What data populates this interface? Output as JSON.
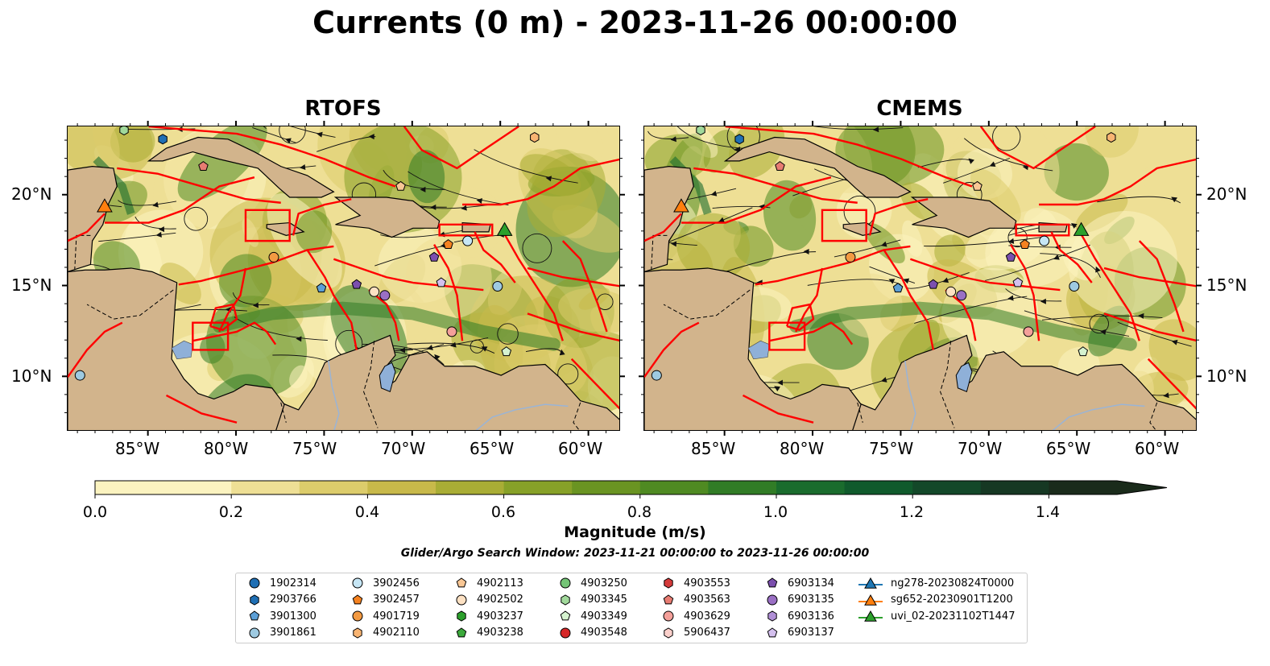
{
  "title": "Currents (0 m) - 2023-11-26 00:00:00",
  "panels": [
    {
      "title": "RTOFS"
    },
    {
      "title": "CMEMS"
    }
  ],
  "lon_ticks": [
    "85°W",
    "80°W",
    "75°W",
    "70°W",
    "65°W",
    "60°W"
  ],
  "lat_ticks": [
    "20°N",
    "15°N",
    "10°N"
  ],
  "colorbar": {
    "label": "Magnitude (m/s)",
    "ticks": [
      "0.0",
      "0.2",
      "0.4",
      "0.6",
      "0.8",
      "1.0",
      "1.2",
      "1.4"
    ],
    "extend": "max"
  },
  "search_window": "Glider/Argo Search Window: 2023-11-21 00:00:00 to 2023-11-26 00:00:00",
  "colors": {
    "land": "#d2b48c",
    "lake": "#8fb0d8",
    "boundaries": "#ff0000",
    "ramp": [
      "#fbf3c0",
      "#eedf95",
      "#dccc6b",
      "#c8b94a",
      "#a9ad35",
      "#87a128",
      "#6a9422",
      "#4f8a22",
      "#317c26",
      "#1a6c2d",
      "#105a2c",
      "#134829",
      "#163823",
      "#1a2b1b"
    ]
  },
  "legend": [
    {
      "label": "1902314",
      "marker": "circle",
      "color": "#1f6fb4"
    },
    {
      "label": "2903766",
      "marker": "hexagon",
      "color": "#1f6fb4"
    },
    {
      "label": "3901300",
      "marker": "pentagon",
      "color": "#5c9fd6"
    },
    {
      "label": "3901861",
      "marker": "circle",
      "color": "#9ecae1"
    },
    {
      "label": "3902456",
      "marker": "circle",
      "color": "#c6e6f5"
    },
    {
      "label": "3902457",
      "marker": "pentagon",
      "color": "#f58220"
    },
    {
      "label": "4901719",
      "marker": "circle",
      "color": "#f39a42"
    },
    {
      "label": "4902110",
      "marker": "hexagon",
      "color": "#f8b472"
    },
    {
      "label": "4902113",
      "marker": "pentagon",
      "color": "#f9c795"
    },
    {
      "label": "4902502",
      "marker": "circle",
      "color": "#fde1c3"
    },
    {
      "label": "4903237",
      "marker": "hexagon",
      "color": "#2ca02c"
    },
    {
      "label": "4903238",
      "marker": "pentagon",
      "color": "#3caa3c"
    },
    {
      "label": "4903250",
      "marker": "circle",
      "color": "#74c476"
    },
    {
      "label": "4903345",
      "marker": "hexagon",
      "color": "#a1d99b"
    },
    {
      "label": "4903349",
      "marker": "pentagon",
      "color": "#d5f2cf"
    },
    {
      "label": "4903548",
      "marker": "circle",
      "color": "#d62728"
    },
    {
      "label": "4903553",
      "marker": "hexagon",
      "color": "#d43a3a"
    },
    {
      "label": "4903563",
      "marker": "pentagon",
      "color": "#e87c72"
    },
    {
      "label": "4903629",
      "marker": "circle",
      "color": "#f4a09a"
    },
    {
      "label": "5906437",
      "marker": "hexagon",
      "color": "#fbd0cb"
    },
    {
      "label": "6903134",
      "marker": "pentagon",
      "color": "#7b4fae"
    },
    {
      "label": "6903135",
      "marker": "circle",
      "color": "#9a6fc4"
    },
    {
      "label": "6903136",
      "marker": "hexagon",
      "color": "#b08fd6"
    },
    {
      "label": "6903137",
      "marker": "pentagon",
      "color": "#d4c0ee"
    },
    {
      "label": "ng278-20230824T0000",
      "marker": "triangle-line",
      "color": "#1f77b4"
    },
    {
      "label": "sg652-20230901T1200",
      "marker": "triangle-line",
      "color": "#ff7f0e"
    },
    {
      "label": "uvi_02-20231102T1447",
      "marker": "triangle-line",
      "color": "#2ca02c"
    }
  ],
  "chart_data": {
    "type": "map",
    "title": "Currents (0 m) - 2023-11-26 00:00:00",
    "subplots": [
      "RTOFS",
      "CMEMS"
    ],
    "lon_range": [
      -89.6,
      -58.2
    ],
    "lat_range": [
      7.0,
      23.8
    ],
    "colorbar_range": [
      0.0,
      1.5
    ],
    "platforms": [
      {
        "id": "2903766",
        "lon": -84.2,
        "lat": 23.1
      },
      {
        "id": "4903345",
        "lon": -86.4,
        "lat": 23.6
      },
      {
        "id": "4903563",
        "lon": -81.9,
        "lat": 21.6
      },
      {
        "id": "4902113",
        "lon": -70.7,
        "lat": 20.5
      },
      {
        "id": "4902110",
        "lon": -63.1,
        "lat": 23.2
      },
      {
        "id": "sg652-20230901T1200",
        "lon": -87.5,
        "lat": 19.4
      },
      {
        "id": "4901719",
        "lon": -77.9,
        "lat": 16.6
      },
      {
        "id": "3902457",
        "lon": -68.0,
        "lat": 17.3
      },
      {
        "id": "3902456",
        "lon": -66.9,
        "lat": 17.5
      },
      {
        "id": "uvi_02-20231102T1447",
        "lon": -64.8,
        "lat": 18.1
      },
      {
        "id": "6903134",
        "lon": -68.8,
        "lat": 16.6
      },
      {
        "id": "3901300",
        "lon": -75.2,
        "lat": 14.9
      },
      {
        "id": "6903134",
        "lon": -73.2,
        "lat": 15.1
      },
      {
        "id": "4902502",
        "lon": -72.2,
        "lat": 14.7
      },
      {
        "id": "6903135",
        "lon": -71.6,
        "lat": 14.5
      },
      {
        "id": "6903137",
        "lon": -68.4,
        "lat": 15.2
      },
      {
        "id": "3901861",
        "lon": -65.2,
        "lat": 15.0
      },
      {
        "id": "4903629",
        "lon": -67.8,
        "lat": 12.5
      },
      {
        "id": "4903349",
        "lon": -64.7,
        "lat": 11.4
      },
      {
        "id": "3901861",
        "lon": -88.9,
        "lat": 10.1
      }
    ]
  }
}
